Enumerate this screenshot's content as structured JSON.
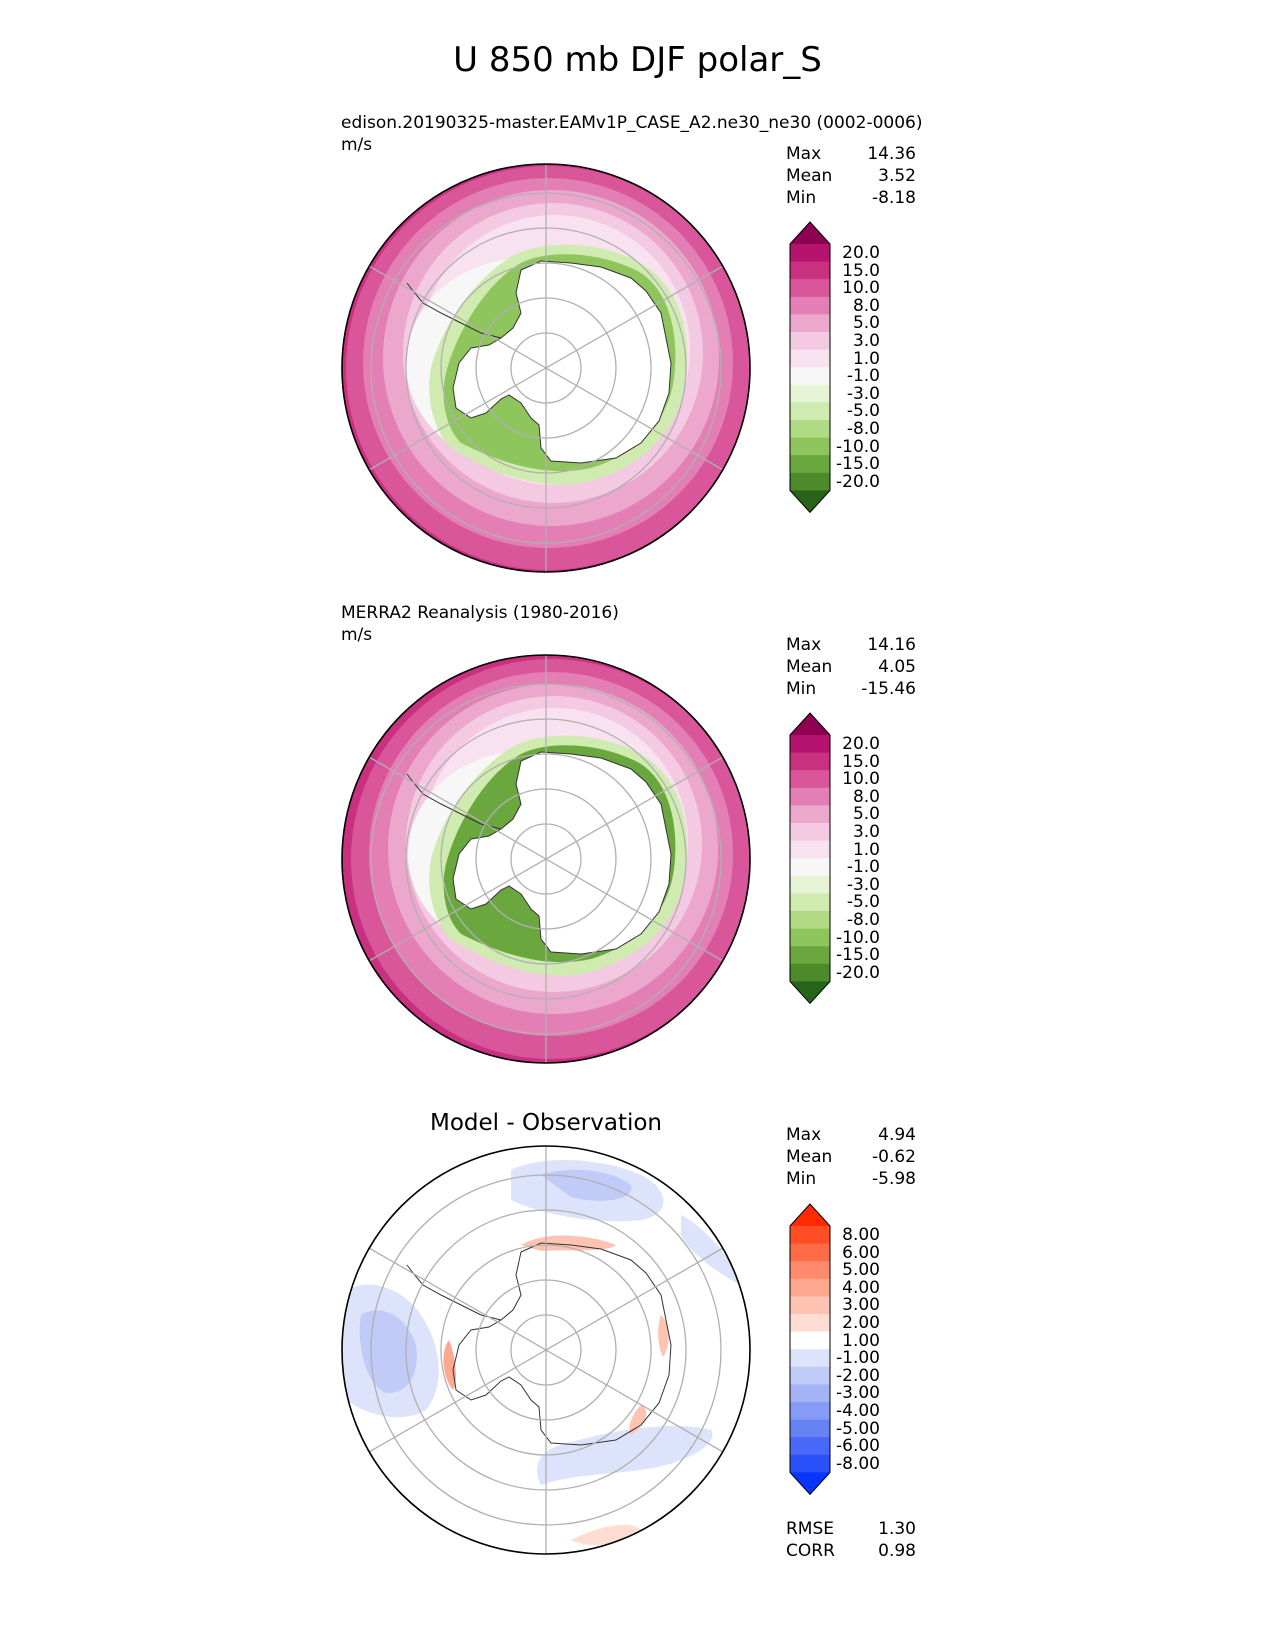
{
  "figure": {
    "title": "U 850 mb DJF polar_S"
  },
  "panels": [
    {
      "id": "test",
      "subtitle": "edison.20190325-master.EAMv1P_CASE_A2.ne30_ne30 (0002-0006)",
      "units": "m/s",
      "stats": [
        {
          "label": "Max",
          "value": "14.36"
        },
        {
          "label": "Mean",
          "value": "3.52"
        },
        {
          "label": "Min",
          "value": "-8.18"
        }
      ]
    },
    {
      "id": "reference",
      "subtitle": "MERRA2 Reanalysis (1980-2016)",
      "units": "m/s",
      "stats": [
        {
          "label": "Max",
          "value": "14.16"
        },
        {
          "label": "Mean",
          "value": "4.05"
        },
        {
          "label": "Min",
          "value": "-15.46"
        }
      ]
    },
    {
      "id": "difference",
      "title": "Model - Observation",
      "stats": [
        {
          "label": "Max",
          "value": "4.94"
        },
        {
          "label": "Mean",
          "value": "-0.62"
        },
        {
          "label": "Min",
          "value": "-5.98"
        }
      ],
      "metrics": [
        {
          "label": "RMSE",
          "value": "1.30"
        },
        {
          "label": "CORR",
          "value": "0.98"
        }
      ]
    }
  ],
  "colorbars": {
    "field": {
      "labels": [
        "20.0",
        "15.0",
        "10.0",
        "8.0",
        "5.0",
        "3.0",
        "1.0",
        "-1.0",
        "-3.0",
        "-5.0",
        "-8.0",
        "-10.0",
        "-15.0",
        "-20.0"
      ],
      "colors": [
        "#8e0152",
        "#b5136e",
        "#c9307f",
        "#d9569a",
        "#e47fb5",
        "#eca7cd",
        "#f4c9e2",
        "#f8e2ef",
        "#f7f7f7",
        "#e6f3d4",
        "#d0ebb0",
        "#b0da84",
        "#8ec65d",
        "#6ba73f",
        "#4d8a2a",
        "#276419"
      ]
    },
    "diff": {
      "labels": [
        "8.00",
        "6.00",
        "5.00",
        "4.00",
        "3.00",
        "2.00",
        "1.00",
        "-1.00",
        "-2.00",
        "-3.00",
        "-4.00",
        "-5.00",
        "-6.00",
        "-8.00"
      ],
      "colors": [
        "#ff2a00",
        "#ff4d26",
        "#ff6a47",
        "#ff8a6c",
        "#ffa890",
        "#ffc3b3",
        "#ffddd3",
        "#ffffff",
        "#dde3fb",
        "#c1cbf8",
        "#a3b3f6",
        "#859bf5",
        "#6683f6",
        "#4868f7",
        "#2a50f9",
        "#0a35ff"
      ]
    }
  },
  "chart_data": {
    "type": "map",
    "projection": "south polar stereographic",
    "variable": "U 850 mb",
    "season": "DJF",
    "units": "m/s",
    "levels": [
      -20.0,
      -15.0,
      -10.0,
      -8.0,
      -5.0,
      -3.0,
      -1.0,
      1.0,
      3.0,
      5.0,
      8.0,
      10.0,
      15.0,
      20.0
    ],
    "diff_levels": [
      -8.0,
      -6.0,
      -5.0,
      -4.0,
      -3.0,
      -2.0,
      -1.0,
      1.0,
      2.0,
      3.0,
      4.0,
      5.0,
      6.0,
      8.0
    ]
  }
}
